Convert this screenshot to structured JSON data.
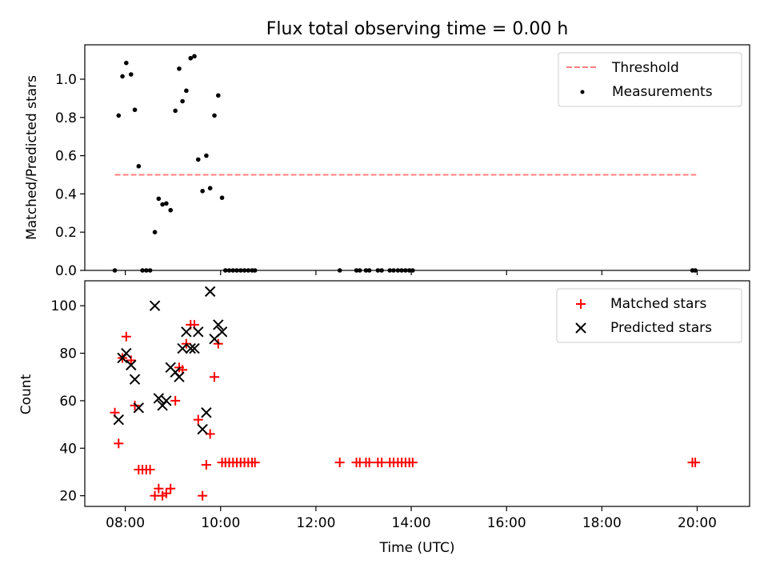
{
  "title": "Flux total observing time = 0.00 h",
  "chart_data": [
    {
      "type": "scatter",
      "ylabel": "Matched/Predicted stars",
      "xlim": [
        7.15,
        21.1
      ],
      "ylim": [
        0,
        1.18
      ],
      "yticks": [
        0.0,
        0.2,
        0.4,
        0.6,
        0.8,
        1.0
      ],
      "ytick_labels": [
        "0.0",
        "0.2",
        "0.4",
        "0.6",
        "0.8",
        "1.0"
      ],
      "legend_position": "top-right",
      "legend": [
        {
          "label": "Threshold",
          "style": "dashed-line",
          "color": "#ff7f7f"
        },
        {
          "label": "Measurements",
          "style": "dot",
          "color": "#000000"
        }
      ],
      "threshold": {
        "value": 0.5,
        "x_start": 7.78,
        "x_end": 19.98,
        "color": "#ff7f7f"
      },
      "series": [
        {
          "name": "Measurements",
          "color": "#000000",
          "points": [
            [
              7.78,
              0.0
            ],
            [
              7.86,
              0.81
            ],
            [
              7.94,
              1.015
            ],
            [
              8.02,
              1.085
            ],
            [
              8.12,
              1.025
            ],
            [
              8.2,
              0.84
            ],
            [
              8.28,
              0.545
            ],
            [
              8.36,
              0.0
            ],
            [
              8.44,
              0.0
            ],
            [
              8.52,
              0.0
            ],
            [
              8.62,
              0.2
            ],
            [
              8.7,
              0.375
            ],
            [
              8.78,
              0.345
            ],
            [
              8.86,
              0.35
            ],
            [
              8.95,
              0.315
            ],
            [
              9.05,
              0.835
            ],
            [
              9.13,
              1.055
            ],
            [
              9.2,
              0.885
            ],
            [
              9.28,
              0.94
            ],
            [
              9.37,
              1.11
            ],
            [
              9.45,
              1.12
            ],
            [
              9.53,
              0.58
            ],
            [
              9.62,
              0.415
            ],
            [
              9.7,
              0.6
            ],
            [
              9.78,
              0.43
            ],
            [
              9.87,
              0.81
            ],
            [
              9.95,
              0.915
            ],
            [
              10.03,
              0.38
            ],
            [
              10.1,
              0.0
            ],
            [
              10.18,
              0.0
            ],
            [
              10.26,
              0.0
            ],
            [
              10.34,
              0.0
            ],
            [
              10.42,
              0.0
            ],
            [
              10.5,
              0.0
            ],
            [
              10.58,
              0.0
            ],
            [
              10.66,
              0.0
            ],
            [
              10.72,
              0.0
            ],
            [
              12.5,
              0.0
            ],
            [
              12.85,
              0.0
            ],
            [
              12.92,
              0.0
            ],
            [
              13.05,
              0.0
            ],
            [
              13.12,
              0.0
            ],
            [
              13.3,
              0.0
            ],
            [
              13.38,
              0.0
            ],
            [
              13.55,
              0.0
            ],
            [
              13.63,
              0.0
            ],
            [
              13.72,
              0.0
            ],
            [
              13.8,
              0.0
            ],
            [
              13.88,
              0.0
            ],
            [
              13.96,
              0.0
            ],
            [
              14.03,
              0.0
            ],
            [
              19.9,
              0.0
            ],
            [
              19.96,
              0.0
            ]
          ]
        }
      ]
    },
    {
      "type": "scatter",
      "xlabel": "Time (UTC)",
      "ylabel": "Count",
      "xlim": [
        7.15,
        21.1
      ],
      "ylim": [
        15.5,
        110.5
      ],
      "xticks": [
        8,
        10,
        12,
        14,
        16,
        18,
        20
      ],
      "xtick_labels": [
        "08:00",
        "10:00",
        "12:00",
        "14:00",
        "16:00",
        "18:00",
        "20:00"
      ],
      "yticks": [
        20,
        40,
        60,
        80,
        100
      ],
      "ytick_labels": [
        "20",
        "40",
        "60",
        "80",
        "100"
      ],
      "legend_position": "top-right",
      "legend": [
        {
          "label": "Matched stars",
          "style": "plus",
          "color": "#ff0000"
        },
        {
          "label": "Predicted stars",
          "style": "x",
          "color": "#000000"
        }
      ],
      "series": [
        {
          "name": "Matched stars",
          "marker": "plus",
          "color": "#ff0000",
          "points": [
            [
              7.78,
              55
            ],
            [
              7.86,
              42
            ],
            [
              7.94,
              78
            ],
            [
              8.02,
              87
            ],
            [
              8.12,
              77
            ],
            [
              8.2,
              58
            ],
            [
              8.28,
              31
            ],
            [
              8.36,
              31
            ],
            [
              8.44,
              31
            ],
            [
              8.52,
              31
            ],
            [
              8.62,
              20
            ],
            [
              8.7,
              23
            ],
            [
              8.78,
              20
            ],
            [
              8.86,
              21
            ],
            [
              8.95,
              23
            ],
            [
              9.05,
              60
            ],
            [
              9.13,
              74
            ],
            [
              9.2,
              73
            ],
            [
              9.28,
              84
            ],
            [
              9.37,
              92
            ],
            [
              9.45,
              92
            ],
            [
              9.53,
              52
            ],
            [
              9.62,
              20
            ],
            [
              9.7,
              33
            ],
            [
              9.78,
              46
            ],
            [
              9.87,
              70
            ],
            [
              9.95,
              84
            ],
            [
              10.03,
              34
            ],
            [
              10.1,
              34
            ],
            [
              10.18,
              34
            ],
            [
              10.26,
              34
            ],
            [
              10.34,
              34
            ],
            [
              10.42,
              34
            ],
            [
              10.5,
              34
            ],
            [
              10.58,
              34
            ],
            [
              10.66,
              34
            ],
            [
              10.72,
              34
            ],
            [
              12.5,
              34
            ],
            [
              12.85,
              34
            ],
            [
              12.92,
              34
            ],
            [
              13.05,
              34
            ],
            [
              13.12,
              34
            ],
            [
              13.3,
              34
            ],
            [
              13.38,
              34
            ],
            [
              13.55,
              34
            ],
            [
              13.63,
              34
            ],
            [
              13.72,
              34
            ],
            [
              13.8,
              34
            ],
            [
              13.88,
              34
            ],
            [
              13.96,
              34
            ],
            [
              14.03,
              34
            ],
            [
              19.9,
              34
            ],
            [
              19.96,
              34
            ]
          ]
        },
        {
          "name": "Predicted stars",
          "marker": "x",
          "color": "#000000",
          "points": [
            [
              7.86,
              52
            ],
            [
              7.94,
              78
            ],
            [
              8.02,
              80
            ],
            [
              8.12,
              75
            ],
            [
              8.2,
              69
            ],
            [
              8.28,
              57
            ],
            [
              8.62,
              100
            ],
            [
              8.7,
              61
            ],
            [
              8.78,
              58
            ],
            [
              8.86,
              60
            ],
            [
              8.95,
              74
            ],
            [
              9.05,
              72
            ],
            [
              9.13,
              70
            ],
            [
              9.2,
              82
            ],
            [
              9.28,
              89
            ],
            [
              9.37,
              82
            ],
            [
              9.45,
              82
            ],
            [
              9.53,
              89
            ],
            [
              9.62,
              48
            ],
            [
              9.7,
              55
            ],
            [
              9.78,
              106
            ],
            [
              9.87,
              86
            ],
            [
              9.95,
              92
            ],
            [
              10.03,
              89
            ]
          ]
        }
      ]
    }
  ]
}
